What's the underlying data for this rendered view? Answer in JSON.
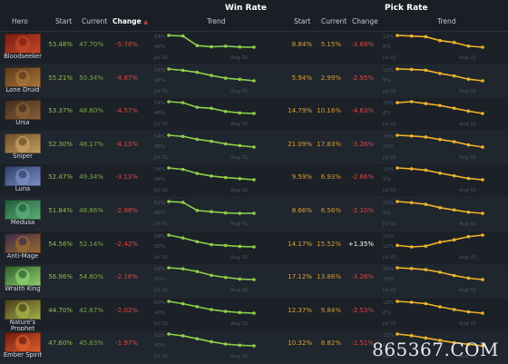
{
  "headers": {
    "win_rate": "Win Rate",
    "pick_rate": "Pick Rate",
    "hero": "Hero",
    "start": "Start",
    "current": "Current",
    "change": "Change",
    "change_arrow": "▲",
    "trend": "Trend"
  },
  "axis": {
    "left": "Jul 01",
    "right": "Aug 01"
  },
  "watermark": "865367.COM",
  "colors": {
    "win": "#8fcf4a",
    "pick": "#f0b429",
    "loss": "#e04545"
  },
  "heroes": [
    {
      "name": "Bloodseeker",
      "icon": "bloodseeker-portrait",
      "colors": [
        "#7a1d12",
        "#c2482a"
      ],
      "win": {
        "start": "53.48%",
        "current": "47.70%",
        "change": "-5.78%",
        "ticks": [
          "54%",
          "48%"
        ],
        "trend": [
          53.5,
          53.2,
          48.5,
          47.9,
          48.2,
          47.8,
          47.7
        ]
      },
      "pick": {
        "start": "8.84%",
        "current": "5.15%",
        "change": "-3.69%",
        "ticks": [
          "12%",
          "6%"
        ],
        "trend": [
          8.8,
          8.6,
          8.4,
          7.2,
          6.6,
          5.5,
          5.15
        ]
      }
    },
    {
      "name": "Lone Druid",
      "icon": "lone-druid-portrait",
      "colors": [
        "#5a3a18",
        "#a9743a"
      ],
      "win": {
        "start": "55.21%",
        "current": "50.34%",
        "change": "-4.87%",
        "ticks": [
          "54%",
          "48%"
        ],
        "trend": [
          55.2,
          54.6,
          53.8,
          52.5,
          51.4,
          50.9,
          50.3
        ]
      },
      "pick": {
        "start": "5.94%",
        "current": "2.99%",
        "change": "-2.95%",
        "ticks": [
          "10%",
          "5%"
        ],
        "trend": [
          5.9,
          5.8,
          5.6,
          4.8,
          4.2,
          3.4,
          3.0
        ]
      }
    },
    {
      "name": "Ursa",
      "icon": "ursa-portrait",
      "colors": [
        "#3f2b1d",
        "#8a6138"
      ],
      "win": {
        "start": "53.37%",
        "current": "48.80%",
        "change": "-4.57%",
        "ticks": [
          "54%",
          "48%"
        ],
        "trend": [
          53.4,
          53.0,
          51.2,
          50.8,
          49.6,
          49.0,
          48.8
        ]
      },
      "pick": {
        "start": "14.79%",
        "current": "10.16%",
        "change": "-4.63%",
        "ticks": [
          "16%",
          "8%"
        ],
        "trend": [
          14.8,
          15.2,
          14.4,
          13.6,
          12.4,
          11.2,
          10.2
        ]
      }
    },
    {
      "name": "Sniper",
      "icon": "sniper-portrait",
      "colors": [
        "#6b4b26",
        "#c7a064"
      ],
      "win": {
        "start": "52.30%",
        "current": "48.17%",
        "change": "-4.13%",
        "ticks": [
          "54%",
          "48%"
        ],
        "trend": [
          52.3,
          51.9,
          50.9,
          50.2,
          49.3,
          48.7,
          48.2
        ]
      },
      "pick": {
        "start": "21.09%",
        "current": "17.83%",
        "change": "-3.26%",
        "ticks": [
          "25%",
          "20%"
        ],
        "trend": [
          21.1,
          20.9,
          20.6,
          19.9,
          19.3,
          18.4,
          17.8
        ]
      }
    },
    {
      "name": "Luna",
      "icon": "luna-portrait",
      "colors": [
        "#2d3f6b",
        "#7d8fc4"
      ],
      "win": {
        "start": "52.47%",
        "current": "49.34%",
        "change": "-3.13%",
        "ticks": [
          "54%",
          "48%"
        ],
        "trend": [
          52.5,
          52.1,
          51.0,
          50.3,
          49.9,
          49.6,
          49.3
        ]
      },
      "pick": {
        "start": "9.59%",
        "current": "6.93%",
        "change": "-2.66%",
        "ticks": [
          "10%",
          "5%"
        ],
        "trend": [
          9.6,
          9.4,
          9.1,
          8.4,
          7.8,
          7.2,
          6.9
        ]
      }
    },
    {
      "name": "Medusa",
      "icon": "medusa-portrait",
      "colors": [
        "#1f5a3a",
        "#5fae78"
      ],
      "win": {
        "start": "51.84%",
        "current": "48.86%",
        "change": "-2.98%",
        "ticks": [
          "52%",
          "48%"
        ],
        "trend": [
          51.8,
          51.6,
          49.6,
          49.3,
          49.0,
          48.9,
          48.9
        ]
      },
      "pick": {
        "start": "8.66%",
        "current": "6.56%",
        "change": "-2.10%",
        "ticks": [
          "10%",
          "5%"
        ],
        "trend": [
          8.7,
          8.5,
          8.2,
          7.6,
          7.2,
          6.8,
          6.6
        ]
      }
    },
    {
      "name": "Anti-Mage",
      "icon": "anti-mage-portrait",
      "colors": [
        "#3b2a4a",
        "#9a6b2f"
      ],
      "win": {
        "start": "54.56%",
        "current": "52.14%",
        "change": "-2.42%",
        "ticks": [
          "58%",
          "50%"
        ],
        "trend": [
          54.6,
          54.0,
          53.2,
          52.6,
          52.4,
          52.2,
          52.1
        ]
      },
      "pick": {
        "start": "14.17%",
        "current": "15.52%",
        "change": "+1.35%",
        "ticks": [
          "20%",
          "10%"
        ],
        "trend": [
          14.2,
          14.0,
          14.1,
          14.6,
          14.9,
          15.3,
          15.5
        ]
      }
    },
    {
      "name": "Wraith King",
      "icon": "wraith-king-portrait",
      "colors": [
        "#2f5a2a",
        "#8fd070"
      ],
      "win": {
        "start": "56.96%",
        "current": "54.80%",
        "change": "-2.16%",
        "ticks": [
          "58%",
          "50%"
        ],
        "trend": [
          57.0,
          56.8,
          56.3,
          55.6,
          55.2,
          54.9,
          54.8
        ]
      },
      "pick": {
        "start": "17.12%",
        "current": "13.86%",
        "change": "-3.26%",
        "ticks": [
          "25%",
          "10%"
        ],
        "trend": [
          17.1,
          16.9,
          16.6,
          15.9,
          15.0,
          14.3,
          13.9
        ]
      }
    },
    {
      "name": "Nature's Prophet",
      "icon": "natures-prophet-portrait",
      "colors": [
        "#4a3a1a",
        "#a3b04a"
      ],
      "win": {
        "start": "44.70%",
        "current": "42.67%",
        "change": "-2.02%",
        "ticks": [
          "60%",
          "40%"
        ],
        "trend": [
          44.7,
          44.3,
          43.8,
          43.3,
          43.0,
          42.8,
          42.7
        ]
      },
      "pick": {
        "start": "12.37%",
        "current": "9.84%",
        "change": "-2.53%",
        "ticks": [
          "18%",
          "6%"
        ],
        "trend": [
          12.4,
          12.2,
          11.9,
          11.2,
          10.6,
          10.1,
          9.8
        ]
      }
    },
    {
      "name": "Ember Spirit",
      "icon": "ember-spirit-portrait",
      "colors": [
        "#6b1a10",
        "#e0602a"
      ],
      "win": {
        "start": "47.60%",
        "current": "45.63%",
        "change": "-1.97%",
        "ticks": [
          "52%",
          "40%"
        ],
        "trend": [
          47.6,
          47.3,
          46.8,
          46.3,
          45.9,
          45.7,
          45.6
        ]
      },
      "pick": {
        "start": "10.32%",
        "current": "8.82%",
        "change": "-1.51%",
        "ticks": [
          "12%",
          "6%"
        ],
        "trend": [
          10.3,
          10.1,
          9.8,
          9.5,
          9.2,
          9.0,
          8.8
        ]
      }
    }
  ]
}
